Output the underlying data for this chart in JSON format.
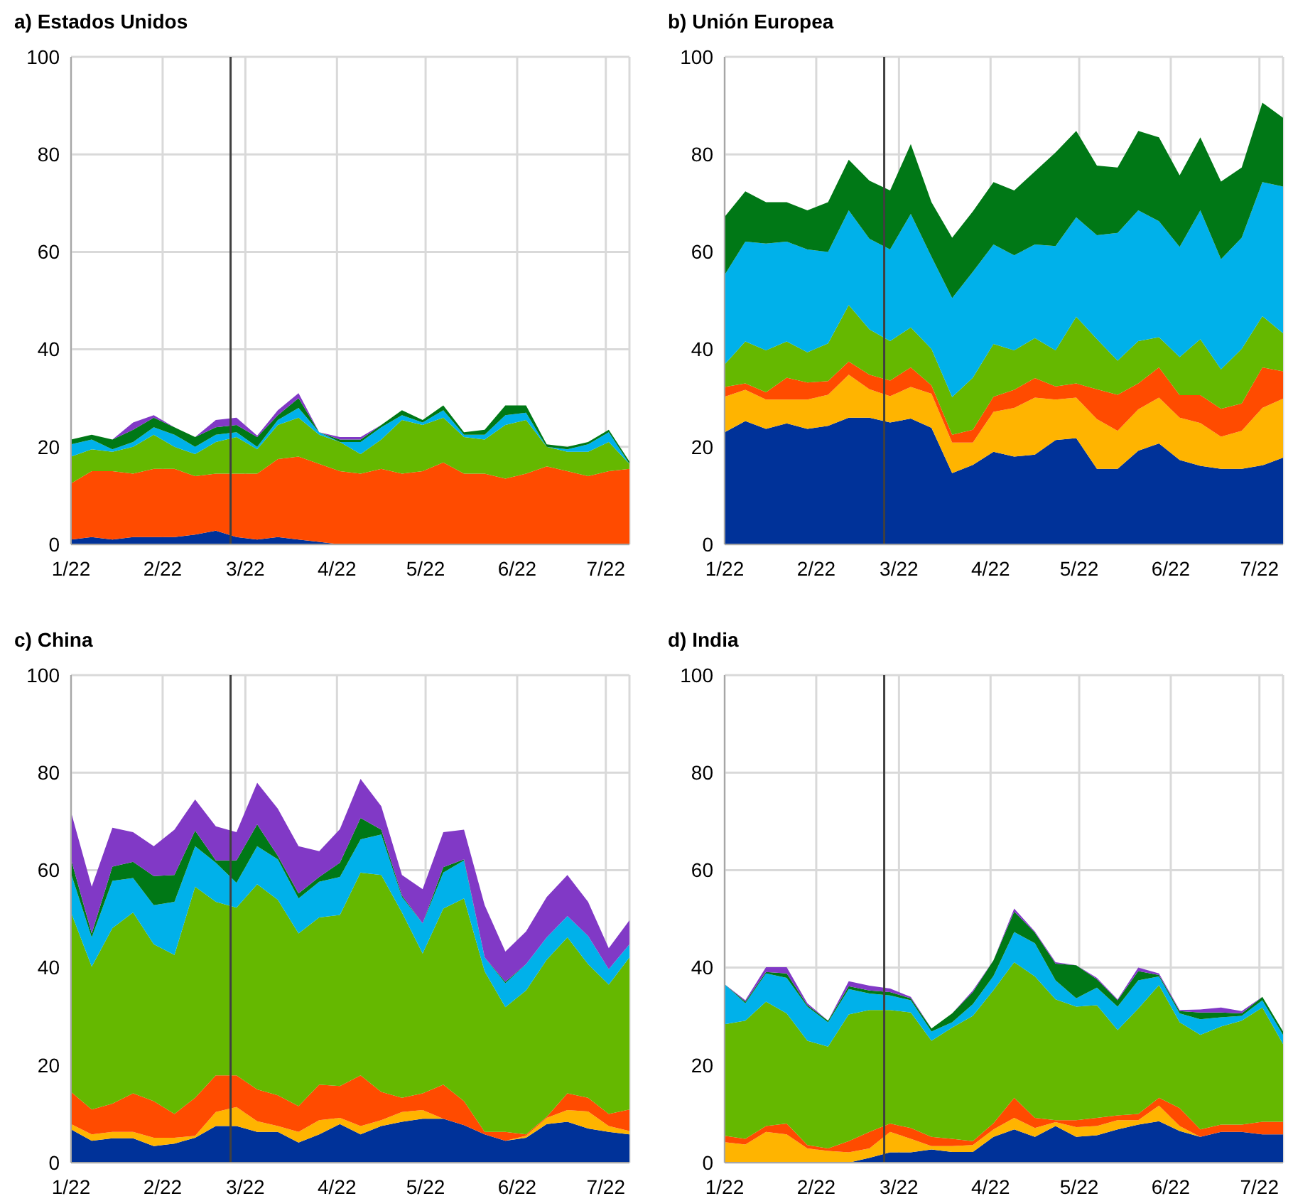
{
  "chart_data": [
    {
      "type": "area",
      "title": "a) Estados Unidos",
      "stacked": true,
      "grid": true,
      "ylim": [
        0,
        100
      ],
      "yticks": [
        0,
        20,
        40,
        60,
        80,
        100
      ],
      "xlim": [
        "2022-01-01",
        "2022-07-09"
      ],
      "xticks": [
        {
          "value": "2022-01-01",
          "label": "1/22"
        },
        {
          "value": "2022-02-01",
          "label": "2/22"
        },
        {
          "value": "2022-03-01",
          "label": "3/22"
        },
        {
          "value": "2022-04-01",
          "label": "4/22"
        },
        {
          "value": "2022-05-01",
          "label": "5/22"
        },
        {
          "value": "2022-06-01",
          "label": "6/22"
        },
        {
          "value": "2022-07-01",
          "label": "7/22"
        }
      ],
      "ref_lines": [
        {
          "axis": "x",
          "value": "2022-02-24",
          "color": "#404040"
        }
      ],
      "x": [
        "2022-01-01",
        "2022-01-08",
        "2022-01-15",
        "2022-01-22",
        "2022-01-29",
        "2022-02-05",
        "2022-02-12",
        "2022-02-19",
        "2022-02-26",
        "2022-03-05",
        "2022-03-12",
        "2022-03-19",
        "2022-03-26",
        "2022-04-02",
        "2022-04-09",
        "2022-04-16",
        "2022-04-23",
        "2022-04-30",
        "2022-05-07",
        "2022-05-14",
        "2022-05-21",
        "2022-05-28",
        "2022-06-04",
        "2022-06-11",
        "2022-06-18",
        "2022-06-25",
        "2022-07-02",
        "2022-07-09"
      ],
      "series": [
        {
          "color": "#003299",
          "values": [
            1,
            1.5,
            1,
            1.5,
            1.5,
            1.5,
            2,
            2.8,
            1.5,
            1,
            1.5,
            1,
            0.5,
            0,
            0,
            0,
            0,
            0,
            0,
            0,
            0,
            0,
            0,
            0,
            0,
            0,
            0,
            0
          ]
        },
        {
          "color": "#ff4b00",
          "values": [
            11.5,
            13.5,
            14,
            13,
            14,
            14,
            12,
            11.7,
            13,
            13.5,
            16,
            17,
            16,
            15,
            14.5,
            15.5,
            14.5,
            15,
            16.8,
            14.5,
            14.5,
            13.5,
            14.5,
            16,
            15,
            14,
            15,
            15.5
          ]
        },
        {
          "color": "#65b800",
          "values": [
            5.5,
            4.5,
            4,
            5.5,
            7,
            4.5,
            4.5,
            6.5,
            7.5,
            5,
            7,
            8,
            6,
            6,
            4,
            6,
            11,
            9.5,
            9.2,
            7.5,
            7,
            11,
            11,
            4,
            4,
            5,
            6,
            1
          ]
        },
        {
          "color": "#00b1ea",
          "values": [
            2.5,
            2,
            0.5,
            1,
            1.5,
            2.5,
            1.5,
            1.5,
            1,
            0.5,
            1,
            2,
            0.5,
            0,
            2.5,
            2.5,
            1,
            0.5,
            1.5,
            0.5,
            1,
            2,
            1.5,
            0,
            0.5,
            1.5,
            2,
            0
          ]
        },
        {
          "color": "#007816",
          "values": [
            1,
            1,
            2,
            2.5,
            2,
            1.5,
            2,
            1.5,
            1.5,
            2,
            1,
            2,
            0,
            0.5,
            0.5,
            0.5,
            1,
            0.5,
            1,
            0.5,
            1,
            2,
            1.5,
            0.5,
            0.5,
            0.5,
            0.5,
            0.5
          ]
        },
        {
          "color": "#8139c6",
          "values": [
            0,
            0,
            0,
            1.5,
            0.5,
            0,
            0,
            1.5,
            1.5,
            0.3,
            1,
            1,
            0,
            0.5,
            0.5,
            0,
            0,
            0,
            0,
            0,
            0,
            0,
            0,
            0,
            0,
            0,
            0,
            0
          ]
        }
      ]
    },
    {
      "type": "area",
      "title": "b) Unión Europea",
      "stacked": true,
      "grid": true,
      "ylim": [
        0,
        100
      ],
      "yticks": [
        0,
        20,
        40,
        60,
        80,
        100
      ],
      "xlim": [
        "2022-01-01",
        "2022-07-09"
      ],
      "xticks": [
        {
          "value": "2022-01-01",
          "label": "1/22"
        },
        {
          "value": "2022-02-01",
          "label": "2/22"
        },
        {
          "value": "2022-03-01",
          "label": "3/22"
        },
        {
          "value": "2022-04-01",
          "label": "4/22"
        },
        {
          "value": "2022-05-01",
          "label": "5/22"
        },
        {
          "value": "2022-06-01",
          "label": "6/22"
        },
        {
          "value": "2022-07-01",
          "label": "7/22"
        }
      ],
      "ref_lines": [
        {
          "axis": "x",
          "value": "2022-02-24",
          "color": "#404040"
        }
      ],
      "x": [
        "2022-01-01",
        "2022-01-08",
        "2022-01-15",
        "2022-01-22",
        "2022-01-29",
        "2022-02-05",
        "2022-02-12",
        "2022-02-19",
        "2022-02-26",
        "2022-03-05",
        "2022-03-12",
        "2022-03-19",
        "2022-03-26",
        "2022-04-02",
        "2022-04-09",
        "2022-04-16",
        "2022-04-23",
        "2022-04-30",
        "2022-05-07",
        "2022-05-14",
        "2022-05-21",
        "2022-05-28",
        "2022-06-04",
        "2022-06-11",
        "2022-06-18",
        "2022-06-25",
        "2022-07-02",
        "2022-07-09"
      ],
      "series": [
        {
          "color": "#003299",
          "values": [
            23,
            25.3,
            23.7,
            24.8,
            23.7,
            24.3,
            26,
            26,
            25,
            25.8,
            23.9,
            14.6,
            16.3,
            19,
            18,
            18.4,
            21.4,
            21.8,
            15.5,
            15.5,
            19.2,
            20.7,
            17.3,
            16.1,
            15.5,
            15.5,
            16.2,
            17.8
          ]
        },
        {
          "color": "#ffb400",
          "values": [
            7.3,
            6.4,
            6,
            4.9,
            6,
            6.4,
            8.8,
            5.8,
            5.4,
            6.5,
            7,
            6.3,
            4.6,
            8.2,
            10,
            11.7,
            8.3,
            8.3,
            10.2,
            7.8,
            8.5,
            9.4,
            8.7,
            8.8,
            6.6,
            7.8,
            11.8,
            12.1
          ]
        },
        {
          "color": "#ff4b00",
          "values": [
            2,
            1.3,
            1.5,
            4.5,
            3.5,
            2.8,
            2.7,
            3,
            3.2,
            4,
            1.7,
            1.6,
            2.6,
            3.1,
            3.7,
            4,
            2.7,
            2.9,
            6.1,
            7.4,
            5.3,
            6.2,
            4.6,
            5.7,
            5.7,
            5.6,
            8.3,
            5.6
          ]
        },
        {
          "color": "#65b800",
          "values": [
            4.6,
            8.6,
            8.6,
            7.4,
            6.2,
            7.7,
            11.6,
            9.3,
            8.1,
            8.2,
            7.5,
            7.7,
            10.7,
            10.8,
            8.1,
            8.2,
            7.4,
            13.7,
            10.3,
            7,
            8.7,
            6.2,
            7.8,
            11.5,
            8.1,
            11.2,
            10.5,
            7.8
          ]
        },
        {
          "color": "#00b1ea",
          "values": [
            18.4,
            20.5,
            21.9,
            20.5,
            21.1,
            18.8,
            19.4,
            18.6,
            18.8,
            23.3,
            18.9,
            20.3,
            21.7,
            20.4,
            19.5,
            19.2,
            21.4,
            20.4,
            21.3,
            26.2,
            26.8,
            23.8,
            22.6,
            26.4,
            22.6,
            22.8,
            27.5,
            30.1
          ]
        },
        {
          "color": "#007816",
          "values": [
            11.9,
            10.3,
            8.5,
            8.1,
            8,
            10.2,
            10.4,
            11.9,
            12.1,
            14.3,
            11.2,
            12.4,
            12.4,
            12.8,
            13.3,
            15,
            19.2,
            17.7,
            14.3,
            13.4,
            16.3,
            17.2,
            14.7,
            15,
            15.9,
            14.4,
            16.3,
            14.1
          ]
        }
      ]
    },
    {
      "type": "area",
      "title": "c) China",
      "stacked": true,
      "grid": true,
      "ylim": [
        0,
        100
      ],
      "yticks": [
        0,
        20,
        40,
        60,
        80,
        100
      ],
      "xlim": [
        "2022-01-01",
        "2022-07-09"
      ],
      "xticks": [
        {
          "value": "2022-01-01",
          "label": "1/22"
        },
        {
          "value": "2022-02-01",
          "label": "2/22"
        },
        {
          "value": "2022-03-01",
          "label": "3/22"
        },
        {
          "value": "2022-04-01",
          "label": "4/22"
        },
        {
          "value": "2022-05-01",
          "label": "5/22"
        },
        {
          "value": "2022-06-01",
          "label": "6/22"
        },
        {
          "value": "2022-07-01",
          "label": "7/22"
        }
      ],
      "ref_lines": [
        {
          "axis": "x",
          "value": "2022-02-24",
          "color": "#404040"
        }
      ],
      "x": [
        "2022-01-01",
        "2022-01-08",
        "2022-01-15",
        "2022-01-22",
        "2022-01-29",
        "2022-02-05",
        "2022-02-12",
        "2022-02-19",
        "2022-02-26",
        "2022-03-05",
        "2022-03-12",
        "2022-03-19",
        "2022-03-26",
        "2022-04-02",
        "2022-04-09",
        "2022-04-16",
        "2022-04-23",
        "2022-04-30",
        "2022-05-07",
        "2022-05-14",
        "2022-05-21",
        "2022-05-28",
        "2022-06-04",
        "2022-06-11",
        "2022-06-18",
        "2022-06-25",
        "2022-07-02",
        "2022-07-09"
      ],
      "series": [
        {
          "color": "#003299",
          "values": [
            6.8,
            4.5,
            5,
            5,
            3.4,
            3.9,
            5.1,
            7.5,
            7.5,
            6.3,
            6.3,
            4.1,
            5.8,
            7.9,
            5.8,
            7.5,
            8.4,
            9,
            9,
            7.7,
            5.8,
            4.5,
            5.1,
            7.9,
            8.4,
            7,
            6.3,
            5.8
          ]
        },
        {
          "color": "#ffb400",
          "values": [
            1.1,
            1.3,
            1.3,
            1.3,
            1.7,
            1.2,
            0.4,
            2.9,
            3.9,
            2.2,
            1.2,
            2.2,
            2.9,
            1.3,
            1.7,
            1.2,
            2,
            1.8,
            0,
            0,
            0,
            0,
            0.4,
            1.3,
            2.4,
            3.5,
            1.2,
            0.7
          ]
        },
        {
          "color": "#ff4b00",
          "values": [
            6.6,
            5.1,
            5.8,
            7.9,
            7.5,
            4.9,
            7.8,
            7.5,
            6.5,
            6.5,
            6.3,
            5.3,
            7.3,
            6.5,
            10.4,
            5.8,
            2.9,
            3.4,
            7,
            4.9,
            0.5,
            1.8,
            0.3,
            0.2,
            3.4,
            2.8,
            2.5,
            4.4
          ]
        },
        {
          "color": "#65b800",
          "values": [
            36.8,
            29.3,
            36,
            37.1,
            32.2,
            32.6,
            43.3,
            35.6,
            34.4,
            42.1,
            40.1,
            35.4,
            34.3,
            35.1,
            41.6,
            44.5,
            38,
            28.7,
            36.1,
            41.6,
            32.9,
            25.6,
            29.5,
            32.2,
            32,
            27.4,
            26.5,
            31.2
          ]
        },
        {
          "color": "#00b1ea",
          "values": [
            8,
            6,
            9.7,
            7.1,
            8,
            10.9,
            8.3,
            8,
            5.1,
            7.8,
            8.3,
            7.2,
            7.3,
            7.8,
            6.8,
            8.3,
            3.2,
            6.2,
            7.4,
            7.8,
            2.9,
            4.9,
            5.4,
            4.6,
            4.4,
            5.8,
            3.2,
            2.7
          ]
        },
        {
          "color": "#007816",
          "values": [
            2.9,
            0.8,
            2.9,
            3.3,
            6,
            5.5,
            3.2,
            0.5,
            4.6,
            4.5,
            0.7,
            1,
            1,
            2.9,
            4.4,
            1,
            0.3,
            0,
            1.1,
            0.2,
            0,
            0.3,
            0,
            0,
            0,
            0,
            0,
            0
          ]
        },
        {
          "color": "#8139c6",
          "values": [
            9.7,
            9.6,
            8,
            6.1,
            6.1,
            9.3,
            6.4,
            7,
            5.8,
            8.5,
            9.7,
            9.7,
            5.3,
            6.9,
            8,
            4.8,
            4.2,
            7,
            7.2,
            6.1,
            10.7,
            6.2,
            6.7,
            8.3,
            8.4,
            7,
            4.3,
            4.9
          ]
        }
      ]
    },
    {
      "type": "area",
      "title": "d) India",
      "stacked": true,
      "grid": true,
      "ylim": [
        0,
        100
      ],
      "yticks": [
        0,
        20,
        40,
        60,
        80,
        100
      ],
      "xlim": [
        "2022-01-01",
        "2022-07-09"
      ],
      "xticks": [
        {
          "value": "2022-01-01",
          "label": "1/22"
        },
        {
          "value": "2022-02-01",
          "label": "2/22"
        },
        {
          "value": "2022-03-01",
          "label": "3/22"
        },
        {
          "value": "2022-04-01",
          "label": "4/22"
        },
        {
          "value": "2022-05-01",
          "label": "5/22"
        },
        {
          "value": "2022-06-01",
          "label": "6/22"
        },
        {
          "value": "2022-07-01",
          "label": "7/22"
        }
      ],
      "ref_lines": [
        {
          "axis": "x",
          "value": "2022-02-24",
          "color": "#404040"
        }
      ],
      "x": [
        "2022-01-01",
        "2022-01-08",
        "2022-01-15",
        "2022-01-22",
        "2022-01-29",
        "2022-02-05",
        "2022-02-12",
        "2022-02-19",
        "2022-02-26",
        "2022-03-05",
        "2022-03-12",
        "2022-03-19",
        "2022-03-26",
        "2022-04-02",
        "2022-04-09",
        "2022-04-16",
        "2022-04-23",
        "2022-04-30",
        "2022-05-07",
        "2022-05-14",
        "2022-05-21",
        "2022-05-28",
        "2022-06-04",
        "2022-06-11",
        "2022-06-18",
        "2022-06-25",
        "2022-07-02",
        "2022-07-09"
      ],
      "series": [
        {
          "color": "#003299",
          "values": [
            0,
            0,
            0,
            0,
            0,
            0,
            0,
            1,
            2.1,
            2.1,
            2.7,
            2.2,
            2.2,
            5.3,
            6.8,
            5.3,
            7.5,
            5.3,
            5.6,
            6.8,
            7.8,
            8.5,
            6.5,
            5.3,
            6.3,
            6.3,
            5.8,
            5.8
          ]
        },
        {
          "color": "#ffb400",
          "values": [
            4.2,
            3.7,
            6.3,
            5.8,
            2.9,
            2.4,
            2.1,
            1.9,
            4.2,
            2.8,
            0.7,
            1.2,
            1.4,
            1.5,
            2.4,
            1.8,
            0.8,
            2,
            1.9,
            1.9,
            0.9,
            3.2,
            1,
            0,
            0,
            0,
            0,
            0
          ]
        },
        {
          "color": "#ff4b00",
          "values": [
            1.3,
            1.2,
            1.2,
            2.2,
            0.7,
            0.5,
            2.3,
            3.4,
            1.7,
            2.2,
            1.9,
            1.5,
            0.8,
            1.3,
            4.1,
            2.1,
            0.4,
            1.4,
            1.7,
            1,
            1.3,
            1.6,
            3.7,
            1.5,
            1.5,
            1.5,
            2.6,
            2.6
          ]
        },
        {
          "color": "#65b800",
          "values": [
            22.9,
            24.2,
            25.5,
            22.6,
            21.4,
            20.9,
            26,
            25,
            23.3,
            23.7,
            19.7,
            22.8,
            25.7,
            27.3,
            27.8,
            29,
            24.8,
            23.3,
            23.1,
            17.5,
            21.6,
            23.1,
            17.6,
            19.4,
            20.1,
            21.3,
            23.4,
            15.9
          ]
        },
        {
          "color": "#00b1ea",
          "values": [
            8.2,
            3.6,
            5.8,
            7.3,
            7,
            5,
            5.2,
            3.4,
            3,
            2.5,
            1.9,
            1.1,
            2.4,
            2.9,
            6.2,
            6.8,
            3.9,
            1.7,
            3.6,
            4.8,
            5.8,
            1.8,
            1.8,
            3.2,
            1.9,
            1,
            1.5,
            1.9
          ]
        },
        {
          "color": "#007816",
          "values": [
            0,
            0.3,
            0.3,
            0.9,
            0.3,
            0.3,
            0.6,
            0.6,
            0.7,
            0.4,
            0.6,
            1.8,
            2.5,
            3.2,
            4.2,
            2.2,
            3.4,
            6.8,
            1.7,
            1.3,
            1.9,
            0.3,
            0.5,
            1.4,
            1,
            0.5,
            0.7,
            0.7
          ]
        },
        {
          "color": "#8139c6",
          "values": [
            0,
            0.3,
            1,
            1.3,
            0.4,
            0,
            1,
            1,
            0.7,
            0.3,
            0,
            0,
            0.3,
            0,
            0.6,
            0.2,
            0.3,
            0,
            0.3,
            0.2,
            0.7,
            0.3,
            0.2,
            0.6,
            1,
            0.5,
            0,
            0
          ]
        }
      ]
    }
  ]
}
